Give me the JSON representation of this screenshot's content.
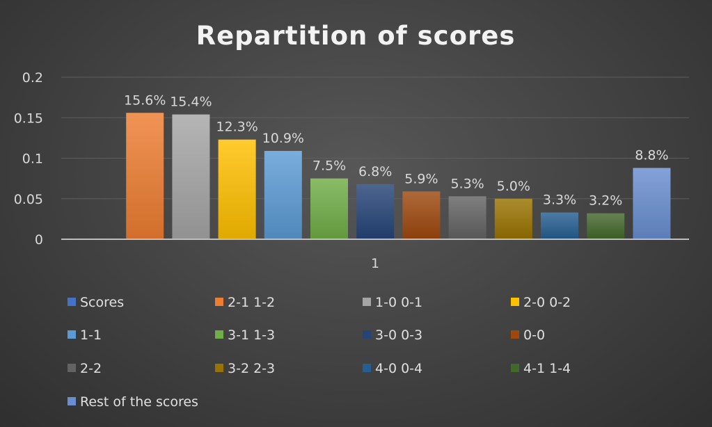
{
  "chart_data": {
    "type": "bar",
    "title": "Repartition of scores",
    "categories": [
      "1"
    ],
    "ylim": [
      0,
      0.2
    ],
    "yticks": [
      "0",
      "0.05",
      "0.1",
      "0.15",
      "0.2"
    ],
    "grid": true,
    "legend_position": "bottom",
    "series": [
      {
        "name": "Scores",
        "value": 0,
        "label": "",
        "color": "#4472c4"
      },
      {
        "name": "2-1 1-2",
        "value": 0.156,
        "label": "15.6%",
        "color": "#ed7d31"
      },
      {
        "name": "1-0 0-1",
        "value": 0.154,
        "label": "15.4%",
        "color": "#a5a5a5"
      },
      {
        "name": "2-0 0-2",
        "value": 0.123,
        "label": "12.3%",
        "color": "#ffc000"
      },
      {
        "name": "1-1",
        "value": 0.109,
        "label": "10.9%",
        "color": "#5b9bd5"
      },
      {
        "name": "3-1 1-3",
        "value": 0.075,
        "label": "7.5%",
        "color": "#70ad47"
      },
      {
        "name": "3-0 0-3",
        "value": 0.068,
        "label": "6.8%",
        "color": "#264478"
      },
      {
        "name": "0-0",
        "value": 0.059,
        "label": "5.9%",
        "color": "#9e480e"
      },
      {
        "name": "2-2",
        "value": 0.053,
        "label": "5.3%",
        "color": "#636363"
      },
      {
        "name": "3-2 2-3",
        "value": 0.05,
        "label": "5.0%",
        "color": "#997300"
      },
      {
        "name": "4-0 0-4",
        "value": 0.033,
        "label": "3.3%",
        "color": "#255e91"
      },
      {
        "name": "4-1 1-4",
        "value": 0.032,
        "label": "3.2%",
        "color": "#43682b"
      },
      {
        "name": "Rest of the scores",
        "value": 0.088,
        "label": "8.8%",
        "color": "#698ed0"
      }
    ]
  }
}
